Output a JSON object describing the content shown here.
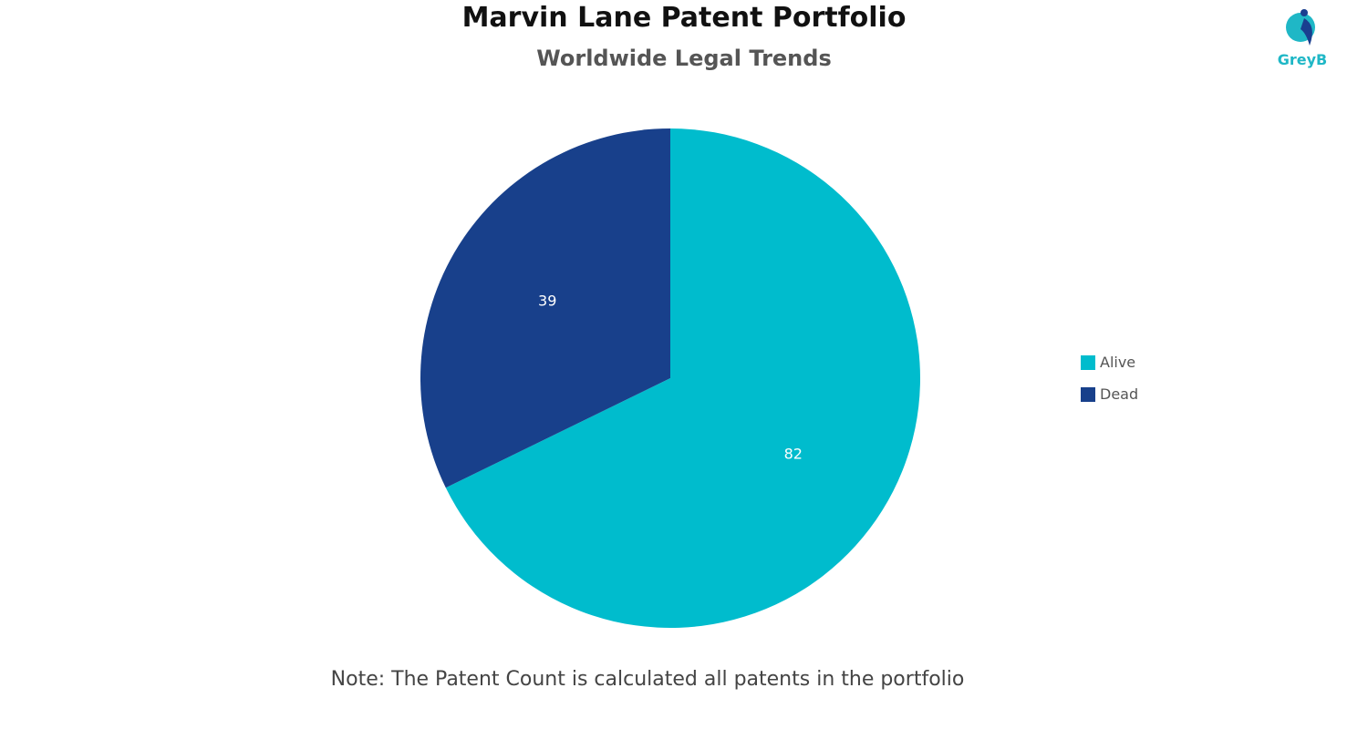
{
  "chart_data": {
    "type": "pie",
    "title": "Marvin Lane Patent Portfolio",
    "subtitle": "Worldwide Legal Trends",
    "categories": [
      "Alive",
      "Dead"
    ],
    "values": [
      82,
      39
    ],
    "colors": [
      "#00bccd",
      "#18408b"
    ],
    "legend_position": "right",
    "data_labels": [
      "82",
      "39"
    ],
    "note": "Note: The Patent Count is calculated all patents in the portfolio"
  },
  "logo": {
    "text": "GreyB",
    "accent": "#1fb7c6",
    "dark": "#1a3f8f"
  },
  "colors": {
    "label_text": "#ffffff"
  }
}
